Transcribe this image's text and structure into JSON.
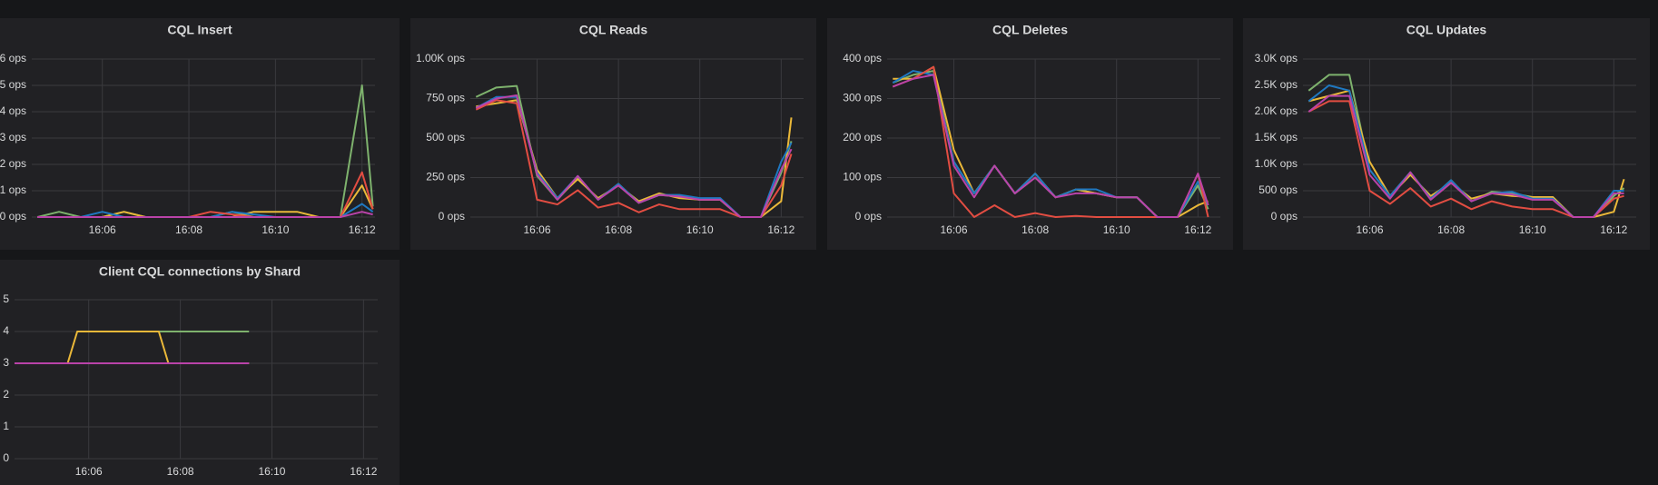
{
  "chart_data": [
    {
      "type": "line",
      "title": "CQL Insert",
      "x": [
        964.5,
        965,
        965.5,
        966,
        966.5,
        967,
        967.5,
        968,
        968.5,
        969,
        969.5,
        970,
        970.5,
        971,
        971.5,
        972,
        972.25
      ],
      "xlim": [
        964.37,
        972.3
      ],
      "xticks": [
        {
          "value": 966,
          "label": "16:06"
        },
        {
          "value": 968,
          "label": "16:08"
        },
        {
          "value": 970,
          "label": "16:10"
        },
        {
          "value": 972,
          "label": "16:12"
        }
      ],
      "ylim": [
        0,
        6
      ],
      "yticks": [
        {
          "value": 0,
          "label": "0 ops"
        },
        {
          "value": 1,
          "label": "1 ops"
        },
        {
          "value": 2,
          "label": "2 ops"
        },
        {
          "value": 3,
          "label": "3 ops"
        },
        {
          "value": 4,
          "label": "4 ops"
        },
        {
          "value": 5,
          "label": "5 ops"
        },
        {
          "value": 6,
          "label": "6 ops"
        }
      ],
      "grid": true,
      "series": [
        {
          "color": "#7eb26d",
          "values": [
            0,
            0.2,
            0,
            0,
            0.2,
            0,
            0,
            0,
            0,
            0.2,
            0,
            0,
            0,
            0,
            0,
            5,
            0.4
          ]
        },
        {
          "color": "#eab839",
          "values": [
            0,
            0,
            0,
            0,
            0.2,
            0,
            0,
            0,
            0,
            0,
            0.2,
            0.2,
            0.2,
            0,
            0,
            1.2,
            0.3
          ]
        },
        {
          "color": "#1f78c1",
          "values": [
            0,
            0,
            0,
            0.2,
            0,
            0,
            0,
            0,
            0,
            0.2,
            0.1,
            0,
            0,
            0,
            0,
            0.5,
            0.2
          ]
        },
        {
          "color": "#e24d42",
          "values": [
            0,
            0,
            0,
            0,
            0,
            0,
            0,
            0,
            0.2,
            0.1,
            0,
            0,
            0,
            0,
            0,
            1.7,
            0.3
          ]
        },
        {
          "color": "#ba43a9",
          "values": [
            0,
            0,
            0,
            0,
            0,
            0,
            0,
            0,
            0,
            0,
            0,
            0,
            0,
            0,
            0,
            0.2,
            0.1
          ]
        }
      ]
    },
    {
      "type": "line",
      "title": "CQL Reads",
      "x": [
        964.5,
        965,
        965.5,
        966,
        966.5,
        967,
        967.5,
        968,
        968.5,
        969,
        969.5,
        970,
        970.5,
        971,
        971.5,
        972,
        972.25
      ],
      "xlim": [
        964.36,
        972.55
      ],
      "xticks": [
        {
          "value": 966,
          "label": "16:06"
        },
        {
          "value": 968,
          "label": "16:08"
        },
        {
          "value": 970,
          "label": "16:10"
        },
        {
          "value": 972,
          "label": "16:12"
        }
      ],
      "ylim": [
        0,
        1000
      ],
      "yticks": [
        {
          "value": 0,
          "label": "0 ops"
        },
        {
          "value": 250,
          "label": "250 ops"
        },
        {
          "value": 500,
          "label": "500 ops"
        },
        {
          "value": 750,
          "label": "750 ops"
        },
        {
          "value": 1000,
          "label": "1.00K ops"
        }
      ],
      "grid": true,
      "series": [
        {
          "color": "#7eb26d",
          "values": [
            760,
            820,
            830,
            260,
            110,
            250,
            110,
            210,
            90,
            140,
            130,
            110,
            110,
            0,
            0,
            280,
            480
          ]
        },
        {
          "color": "#eab839",
          "values": [
            700,
            720,
            740,
            300,
            120,
            240,
            120,
            200,
            100,
            150,
            120,
            110,
            110,
            0,
            0,
            100,
            630
          ]
        },
        {
          "color": "#1f78c1",
          "values": [
            690,
            760,
            760,
            280,
            120,
            260,
            110,
            210,
            90,
            140,
            140,
            120,
            120,
            0,
            0,
            350,
            470
          ]
        },
        {
          "color": "#e24d42",
          "values": [
            680,
            740,
            720,
            110,
            80,
            170,
            60,
            90,
            30,
            80,
            50,
            50,
            50,
            0,
            0,
            200,
            400
          ]
        },
        {
          "color": "#ba43a9",
          "values": [
            690,
            750,
            770,
            270,
            110,
            260,
            110,
            200,
            90,
            140,
            130,
            110,
            110,
            0,
            0,
            300,
            430
          ]
        }
      ]
    },
    {
      "type": "line",
      "title": "CQL Deletes",
      "x": [
        964.5,
        965,
        965.5,
        966,
        966.5,
        967,
        967.5,
        968,
        968.5,
        969,
        969.5,
        970,
        970.5,
        971,
        971.5,
        972,
        972.25
      ],
      "xlim": [
        964.36,
        972.55
      ],
      "xticks": [
        {
          "value": 966,
          "label": "16:06"
        },
        {
          "value": 968,
          "label": "16:08"
        },
        {
          "value": 970,
          "label": "16:10"
        },
        {
          "value": 972,
          "label": "16:12"
        }
      ],
      "ylim": [
        0,
        400
      ],
      "yticks": [
        {
          "value": 0,
          "label": "0 ops"
        },
        {
          "value": 100,
          "label": "100 ops"
        },
        {
          "value": 200,
          "label": "200 ops"
        },
        {
          "value": 300,
          "label": "300 ops"
        },
        {
          "value": 400,
          "label": "400 ops"
        }
      ],
      "grid": true,
      "series": [
        {
          "color": "#7eb26d",
          "values": [
            340,
            360,
            370,
            140,
            60,
            130,
            60,
            100,
            50,
            70,
            60,
            50,
            50,
            0,
            0,
            80,
            20
          ]
        },
        {
          "color": "#eab839",
          "values": [
            350,
            350,
            380,
            170,
            60,
            130,
            60,
            110,
            50,
            70,
            60,
            50,
            50,
            0,
            0,
            30,
            40
          ]
        },
        {
          "color": "#1f78c1",
          "values": [
            340,
            370,
            360,
            140,
            60,
            130,
            60,
            110,
            50,
            70,
            70,
            50,
            50,
            0,
            0,
            90,
            30
          ]
        },
        {
          "color": "#e24d42",
          "values": [
            330,
            350,
            380,
            60,
            0,
            30,
            0,
            10,
            0,
            3,
            0,
            0,
            0,
            0,
            0,
            110,
            0
          ]
        },
        {
          "color": "#ba43a9",
          "values": [
            330,
            350,
            360,
            130,
            50,
            130,
            60,
            100,
            50,
            60,
            60,
            50,
            50,
            0,
            0,
            110,
            30
          ]
        }
      ]
    },
    {
      "type": "line",
      "title": "CQL Updates",
      "x": [
        964.5,
        965,
        965.5,
        966,
        966.5,
        967,
        967.5,
        968,
        968.5,
        969,
        969.5,
        970,
        970.5,
        971,
        971.5,
        972,
        972.25
      ],
      "xlim": [
        964.36,
        972.55
      ],
      "xticks": [
        {
          "value": 966,
          "label": "16:06"
        },
        {
          "value": 968,
          "label": "16:08"
        },
        {
          "value": 970,
          "label": "16:10"
        },
        {
          "value": 972,
          "label": "16:12"
        }
      ],
      "ylim": [
        0,
        3000
      ],
      "yticks": [
        {
          "value": 0,
          "label": "0 ops"
        },
        {
          "value": 500,
          "label": "500 ops"
        },
        {
          "value": 1000,
          "label": "1.0K ops"
        },
        {
          "value": 1500,
          "label": "1.5K ops"
        },
        {
          "value": 2000,
          "label": "2.0K ops"
        },
        {
          "value": 2500,
          "label": "2.5K ops"
        },
        {
          "value": 3000,
          "label": "3.0K ops"
        }
      ],
      "grid": true,
      "series": [
        {
          "color": "#7eb26d",
          "values": [
            2400,
            2700,
            2700,
            900,
            400,
            850,
            350,
            700,
            300,
            480,
            450,
            380,
            380,
            0,
            0,
            400,
            550
          ]
        },
        {
          "color": "#eab839",
          "values": [
            2200,
            2300,
            2400,
            1050,
            400,
            800,
            400,
            650,
            350,
            450,
            400,
            380,
            380,
            0,
            0,
            100,
            720
          ]
        },
        {
          "color": "#1f78c1",
          "values": [
            2200,
            2500,
            2400,
            900,
            400,
            850,
            350,
            700,
            300,
            450,
            480,
            350,
            350,
            0,
            0,
            500,
            500
          ]
        },
        {
          "color": "#e24d42",
          "values": [
            2000,
            2200,
            2200,
            500,
            250,
            550,
            200,
            350,
            150,
            300,
            200,
            150,
            150,
            0,
            0,
            350,
            400
          ]
        },
        {
          "color": "#ba43a9",
          "values": [
            2000,
            2300,
            2300,
            800,
            350,
            850,
            330,
            650,
            300,
            450,
            430,
            330,
            330,
            0,
            0,
            450,
            450
          ]
        }
      ]
    },
    {
      "type": "line",
      "title": "Client CQL connections by Shard",
      "x": [
        964.38,
        965.54,
        965.75,
        967.53,
        967.74,
        969.5
      ],
      "xlim": [
        964.38,
        972.31
      ],
      "xticks": [
        {
          "value": 966,
          "label": "16:06"
        },
        {
          "value": 968,
          "label": "16:08"
        },
        {
          "value": 970,
          "label": "16:10"
        },
        {
          "value": 972,
          "label": "16:12"
        }
      ],
      "ylim": [
        0,
        5
      ],
      "yticks": [
        0,
        1,
        2,
        3,
        4,
        5
      ],
      "grid": true,
      "series": [
        {
          "color": "#7eb26d",
          "values": [
            null,
            null,
            4,
            4,
            4,
            4
          ]
        },
        {
          "color": "#eab839",
          "values": [
            3,
            3,
            4,
            4,
            3,
            3
          ]
        },
        {
          "color": "#ba43a9",
          "values": [
            3,
            3,
            3,
            3,
            3,
            3
          ]
        }
      ]
    }
  ]
}
